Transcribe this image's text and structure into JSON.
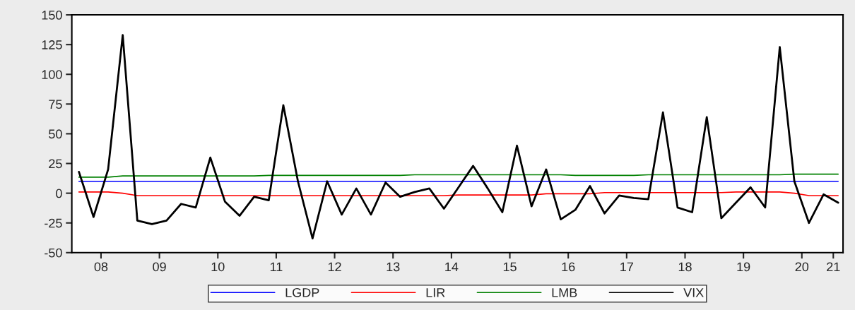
{
  "chart_data": {
    "type": "line",
    "x": [
      "2008-02-15",
      "2008-05-15",
      "2008-08-15",
      "2008-11-15",
      "2009-02-15",
      "2009-05-15",
      "2009-08-15",
      "2009-11-15",
      "2010-02-15",
      "2010-05-15",
      "2010-08-15",
      "2010-11-15",
      "2011-02-15",
      "2011-05-15",
      "2011-08-15",
      "2011-11-15",
      "2012-02-15",
      "2012-05-15",
      "2012-08-15",
      "2012-11-15",
      "2013-02-15",
      "2013-05-15",
      "2013-08-15",
      "2013-11-15",
      "2014-02-15",
      "2014-05-15",
      "2014-08-15",
      "2014-11-15",
      "2015-02-15",
      "2015-05-15",
      "2015-08-15",
      "2015-11-15",
      "2016-02-15",
      "2016-05-15",
      "2016-08-15",
      "2016-11-15",
      "2017-02-15",
      "2017-05-15",
      "2017-08-15",
      "2017-11-15",
      "2018-02-15",
      "2018-05-15",
      "2018-08-15",
      "2018-11-15",
      "2019-02-15",
      "2019-05-15",
      "2019-08-15",
      "2019-11-15",
      "2020-02-15",
      "2020-05-15",
      "2020-08-15",
      "2020-11-15",
      "2021-02-15"
    ],
    "series": [
      {
        "name": "LGDP",
        "color": "#0000ff",
        "values": [
          10,
          10,
          10,
          10,
          10,
          10,
          10,
          10,
          10,
          10,
          10,
          10,
          10,
          10,
          10,
          10,
          10,
          10,
          10,
          10,
          10,
          10,
          10,
          10,
          10,
          10,
          10,
          10,
          10,
          10,
          10,
          10,
          10,
          10,
          10,
          10,
          10,
          10,
          10,
          10,
          10,
          10,
          10,
          10,
          10,
          10,
          10,
          10,
          10,
          10,
          10,
          10,
          10
        ]
      },
      {
        "name": "LIR",
        "color": "#ff0000",
        "values": [
          1,
          1,
          1,
          0,
          -2,
          -2,
          -2,
          -2,
          -2,
          -2,
          -2,
          -2,
          -2,
          -2,
          -2,
          -2,
          -2,
          -2,
          -2,
          -2,
          -2,
          -2,
          -2,
          -2,
          -2,
          -2,
          -1.5,
          -1.5,
          -1.5,
          -1.5,
          -1.5,
          -1.5,
          -0.5,
          -0.5,
          -0.5,
          -0.5,
          0.5,
          0.5,
          0.5,
          0.5,
          0.5,
          0.5,
          0.5,
          0.5,
          0.5,
          1,
          1,
          1,
          1,
          0,
          -2,
          -2,
          -2
        ]
      },
      {
        "name": "LMB",
        "color": "#008000",
        "values": [
          13.5,
          13.5,
          13.5,
          14.5,
          14.5,
          14.5,
          14.5,
          14.5,
          14.5,
          14.5,
          14.5,
          14.5,
          14.5,
          15,
          15,
          15,
          15,
          15,
          15,
          15,
          15,
          15,
          15,
          15.5,
          15.5,
          15.5,
          15.5,
          15.5,
          15.5,
          15.5,
          15.5,
          15.5,
          15.5,
          15.5,
          15,
          15,
          15,
          15,
          15,
          15.5,
          15.5,
          15.5,
          15.5,
          15.5,
          15.5,
          15.5,
          15.5,
          15.5,
          15.5,
          16,
          16,
          16,
          16
        ]
      },
      {
        "name": "VIX",
        "color": "#000000",
        "values": [
          18,
          -20,
          20,
          133,
          -23,
          -26,
          -23,
          -9,
          -12,
          30,
          -7,
          -19,
          -3,
          -6,
          74,
          10,
          -38,
          10,
          -18,
          4,
          -18,
          9,
          -3,
          1,
          4,
          -13,
          5,
          23,
          4,
          -16,
          40,
          -11,
          20,
          -22,
          -14,
          6,
          -17,
          -2,
          -4,
          -5,
          68,
          -12,
          -16,
          64,
          -21,
          -8,
          5,
          -12,
          123,
          10,
          -25,
          -1,
          -8
        ]
      }
    ],
    "xlim": [
      "2008-01-01",
      "2021-03-15"
    ],
    "xticks": [
      {
        "value": "2008-07-01",
        "label": "08"
      },
      {
        "value": "2009-07-01",
        "label": "09"
      },
      {
        "value": "2010-07-01",
        "label": "10"
      },
      {
        "value": "2011-07-01",
        "label": "11"
      },
      {
        "value": "2012-07-01",
        "label": "12"
      },
      {
        "value": "2013-07-01",
        "label": "13"
      },
      {
        "value": "2014-07-01",
        "label": "14"
      },
      {
        "value": "2015-07-01",
        "label": "15"
      },
      {
        "value": "2016-07-01",
        "label": "16"
      },
      {
        "value": "2017-07-01",
        "label": "17"
      },
      {
        "value": "2018-07-01",
        "label": "18"
      },
      {
        "value": "2019-07-01",
        "label": "19"
      },
      {
        "value": "2020-07-01",
        "label": "20"
      },
      {
        "value": "2021-01-15",
        "label": "21"
      }
    ],
    "ylim": [
      -50,
      150
    ],
    "yticks": [
      -50,
      -25,
      0,
      25,
      50,
      75,
      100,
      125,
      150
    ],
    "grid": false,
    "legend": "bottom",
    "marker": "none",
    "line_style": "solid"
  }
}
